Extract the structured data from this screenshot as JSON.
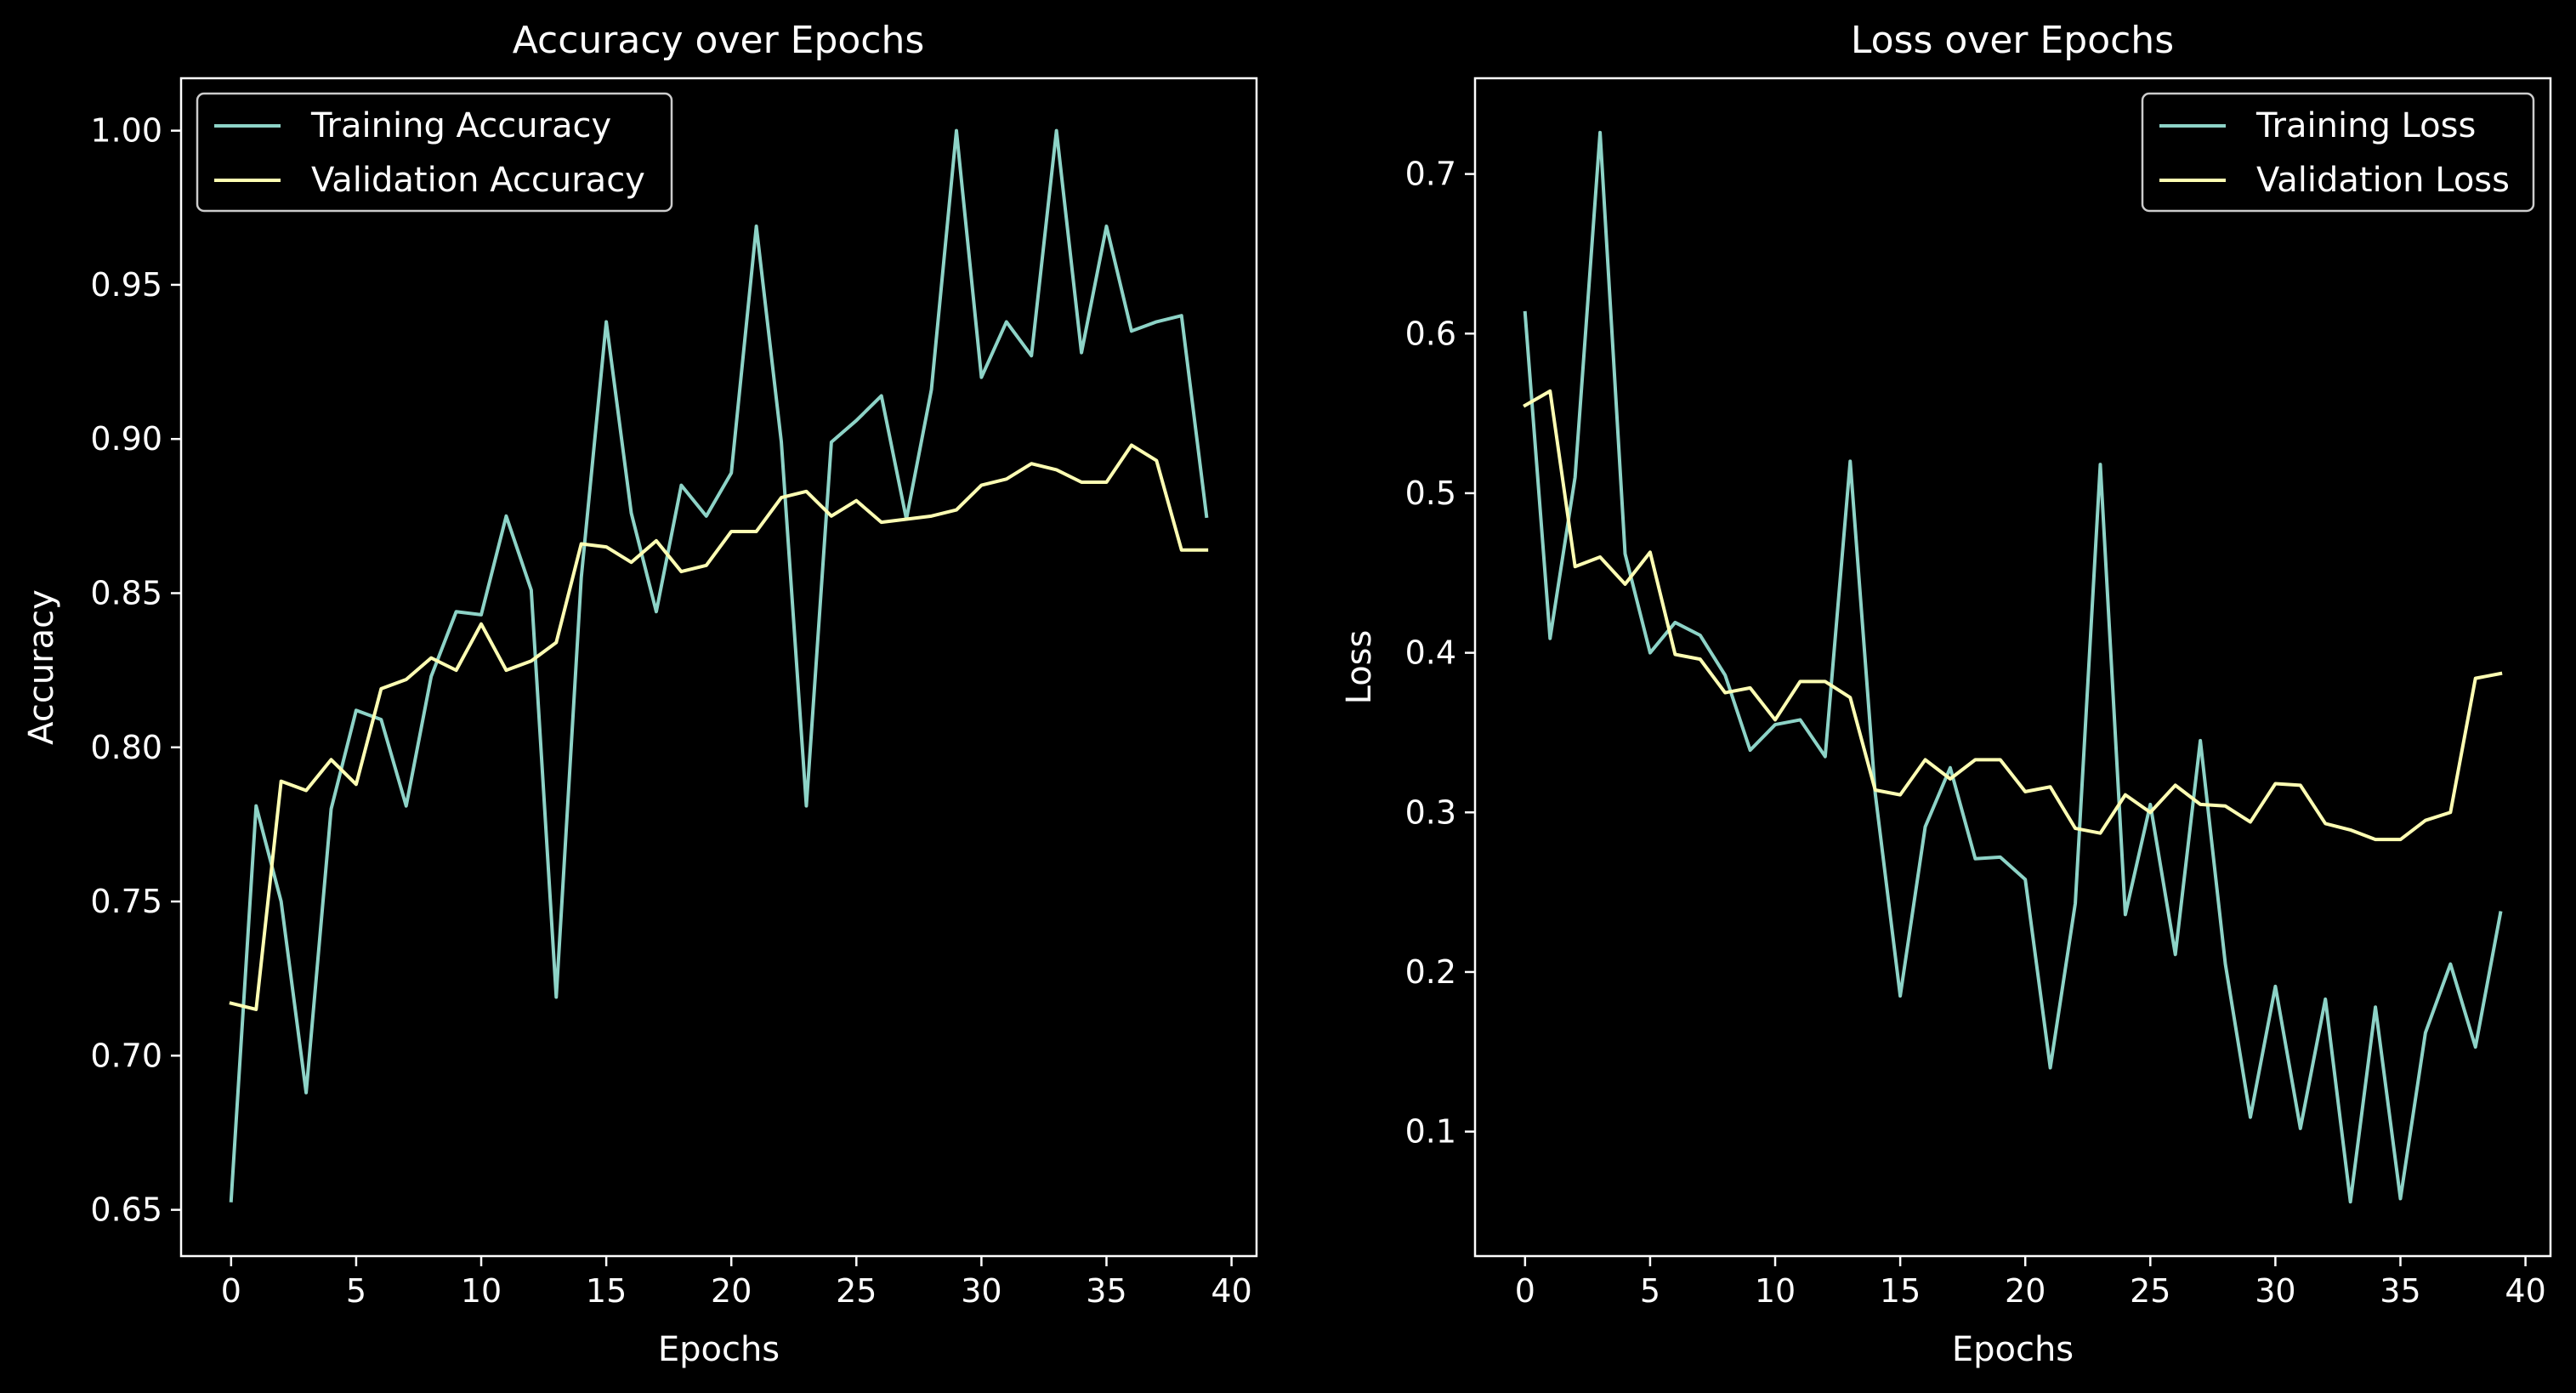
{
  "colors": {
    "background": "#000000",
    "foreground": "#ffffff",
    "training": "#8dd3c7",
    "validation": "#feffb3"
  },
  "chart_data": [
    {
      "type": "line",
      "title": "Accuracy over Epochs",
      "xlabel": "Epochs",
      "ylabel": "Accuracy",
      "xlim": [
        -2.0,
        41.0
      ],
      "ylim": [
        0.635,
        1.017
      ],
      "xticks": [
        0,
        5,
        10,
        15,
        20,
        25,
        30,
        35,
        40
      ],
      "xtick_labels": [
        "0",
        "5",
        "10",
        "15",
        "20",
        "25",
        "30",
        "35",
        "40"
      ],
      "yticks": [
        0.65,
        0.7,
        0.75,
        0.8,
        0.85,
        0.9,
        0.95,
        1.0
      ],
      "ytick_labels": [
        "0.65",
        "0.70",
        "0.75",
        "0.80",
        "0.85",
        "0.90",
        "0.95",
        "1.00"
      ],
      "legend_position": "upper left",
      "grid": false,
      "x": [
        0,
        1,
        2,
        3,
        4,
        5,
        6,
        7,
        8,
        9,
        10,
        11,
        12,
        13,
        14,
        15,
        16,
        17,
        18,
        19,
        20,
        21,
        22,
        23,
        24,
        25,
        26,
        27,
        28,
        29,
        30,
        31,
        32,
        33,
        34,
        35,
        36,
        37,
        38,
        39
      ],
      "series": [
        {
          "name": "Training Accuracy",
          "color": "#8dd3c7",
          "values": [
            0.653,
            0.781,
            0.75,
            0.688,
            0.78,
            0.812,
            0.809,
            0.781,
            0.823,
            0.844,
            0.843,
            0.875,
            0.851,
            0.719,
            0.855,
            0.938,
            0.876,
            0.844,
            0.885,
            0.875,
            0.889,
            0.969,
            0.899,
            0.781,
            0.899,
            0.906,
            0.914,
            0.874,
            0.916,
            1.0,
            0.92,
            0.938,
            0.927,
            1.0,
            0.928,
            0.969,
            0.935,
            0.938,
            0.94,
            0.875
          ]
        },
        {
          "name": "Validation Accuracy",
          "color": "#feffb3",
          "values": [
            0.717,
            0.715,
            0.789,
            0.786,
            0.796,
            0.788,
            0.819,
            0.822,
            0.829,
            0.825,
            0.84,
            0.825,
            0.828,
            0.834,
            0.866,
            0.865,
            0.86,
            0.867,
            0.857,
            0.859,
            0.87,
            0.87,
            0.881,
            0.883,
            0.875,
            0.88,
            0.873,
            0.874,
            0.875,
            0.877,
            0.885,
            0.887,
            0.892,
            0.89,
            0.886,
            0.886,
            0.898,
            0.893,
            0.864,
            0.864
          ]
        }
      ]
    },
    {
      "type": "line",
      "title": "Loss over Epochs",
      "xlabel": "Epochs",
      "ylabel": "Loss",
      "xlim": [
        -2.0,
        41.0
      ],
      "ylim": [
        0.022,
        0.76
      ],
      "xticks": [
        0,
        5,
        10,
        15,
        20,
        25,
        30,
        35,
        40
      ],
      "xtick_labels": [
        "0",
        "5",
        "10",
        "15",
        "20",
        "25",
        "30",
        "35",
        "40"
      ],
      "yticks": [
        0.1,
        0.2,
        0.3,
        0.4,
        0.5,
        0.6,
        0.7
      ],
      "ytick_labels": [
        "0.1",
        "0.2",
        "0.3",
        "0.4",
        "0.5",
        "0.6",
        "0.7"
      ],
      "legend_position": "upper right",
      "grid": false,
      "x": [
        0,
        1,
        2,
        3,
        4,
        5,
        6,
        7,
        8,
        9,
        10,
        11,
        12,
        13,
        14,
        15,
        16,
        17,
        18,
        19,
        20,
        21,
        22,
        23,
        24,
        25,
        26,
        27,
        28,
        29,
        30,
        31,
        32,
        33,
        34,
        35,
        36,
        37,
        38,
        39
      ],
      "series": [
        {
          "name": "Training Loss",
          "color": "#8dd3c7",
          "values": [
            0.613,
            0.409,
            0.51,
            0.726,
            0.462,
            0.4,
            0.419,
            0.411,
            0.386,
            0.339,
            0.355,
            0.358,
            0.335,
            0.52,
            0.312,
            0.185,
            0.291,
            0.328,
            0.271,
            0.272,
            0.258,
            0.14,
            0.243,
            0.518,
            0.236,
            0.305,
            0.211,
            0.345,
            0.205,
            0.109,
            0.191,
            0.102,
            0.183,
            0.056,
            0.178,
            0.058,
            0.162,
            0.205,
            0.153,
            0.237
          ]
        },
        {
          "name": "Validation Loss",
          "color": "#feffb3",
          "values": [
            0.555,
            0.564,
            0.454,
            0.46,
            0.443,
            0.463,
            0.399,
            0.396,
            0.375,
            0.378,
            0.358,
            0.382,
            0.382,
            0.372,
            0.314,
            0.311,
            0.333,
            0.321,
            0.333,
            0.333,
            0.313,
            0.316,
            0.29,
            0.287,
            0.311,
            0.3,
            0.317,
            0.305,
            0.304,
            0.294,
            0.318,
            0.317,
            0.293,
            0.289,
            0.283,
            0.283,
            0.295,
            0.3,
            0.384,
            0.387
          ]
        }
      ]
    }
  ]
}
